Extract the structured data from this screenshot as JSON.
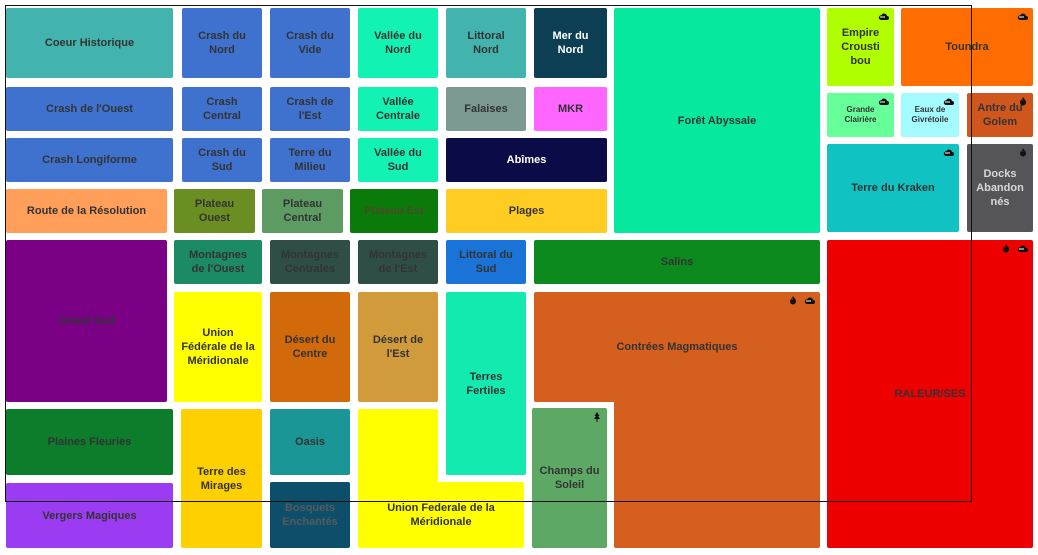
{
  "regions": [
    {
      "id": "coeur-historique",
      "label": "Coeur Historique",
      "color": "#43b3ae"
    },
    {
      "id": "crash-du-nord",
      "label": "Crash du\nNord",
      "color": "#3f72cf"
    },
    {
      "id": "crash-du-vide",
      "label": "Crash du\nVide",
      "color": "#3f72cf"
    },
    {
      "id": "vallee-du-nord",
      "label": "Vallée du\nNord",
      "color": "#12f2b2"
    },
    {
      "id": "littoral-nord",
      "label": "Littoral\nNord",
      "color": "#43b3ae"
    },
    {
      "id": "mer-du-nord",
      "label": "Mer du\nNord",
      "color": "#0c3f53"
    },
    {
      "id": "foret-abyssale",
      "label": "Forêt Abyssale",
      "color": "#06e89e"
    },
    {
      "id": "empire-croustibou",
      "label": "Empire\nCrousti\nbou",
      "color": "#b0ff00",
      "icons": [
        "cloud"
      ]
    },
    {
      "id": "toundra",
      "label": "Toundra",
      "color": "#ff6d00",
      "icons": [
        "cloud"
      ]
    },
    {
      "id": "crash-de-louest",
      "label": "Crash de l'Ouest",
      "color": "#3f72cf"
    },
    {
      "id": "crash-central",
      "label": "Crash\nCentral",
      "color": "#3f72cf"
    },
    {
      "id": "crash-de-lest",
      "label": "Crash de\nl'Est",
      "color": "#3f72cf"
    },
    {
      "id": "vallee-centrale",
      "label": "Vallée\nCentrale",
      "color": "#12f2b2"
    },
    {
      "id": "falaises",
      "label": "Falaises",
      "color": "#7c9a91"
    },
    {
      "id": "mkr",
      "label": "MKR",
      "color": "#ff66ff"
    },
    {
      "id": "grande-clairiere",
      "label": "Grande\nClairière",
      "color": "#66ff99",
      "icons": [
        "cloud"
      ]
    },
    {
      "id": "eaux-de-givretoile",
      "label": "Eaux de\nGivrétoile",
      "color": "#a4fbff",
      "icons": [
        "cloud"
      ]
    },
    {
      "id": "antre-du-golem",
      "label": "Antre du\nGolem",
      "color": "#cf561d",
      "icons": [
        "fire"
      ]
    },
    {
      "id": "crash-longiforme",
      "label": "Crash Longiforme",
      "color": "#3f72cf"
    },
    {
      "id": "crash-du-sud",
      "label": "Crash du\nSud",
      "color": "#3f72cf"
    },
    {
      "id": "terre-du-milieu",
      "label": "Terre du\nMilieu",
      "color": "#3f72cf"
    },
    {
      "id": "vallee-du-sud",
      "label": "Vallée du\nSud",
      "color": "#12f2b2"
    },
    {
      "id": "abimes",
      "label": "Abîmes",
      "color": "#0b0b47"
    },
    {
      "id": "terre-du-kraken",
      "label": "Terre du Kraken",
      "color": "#11c2c2",
      "icons": [
        "cloud"
      ]
    },
    {
      "id": "docks-abandonnes",
      "label": "Docks\nAbandon\nnés",
      "color": "#555559",
      "icons": [
        "fire"
      ]
    },
    {
      "id": "route-de-la-resolution",
      "label": "Route de la Résolution",
      "color": "#ff9f59"
    },
    {
      "id": "plateau-ouest",
      "label": "Plateau\nOuest",
      "color": "#6b8e23"
    },
    {
      "id": "plateau-central",
      "label": "Plateau\nCentral",
      "color": "#5c9b62"
    },
    {
      "id": "plateau-est",
      "label": "Plateau Est",
      "color": "#0a7b0a"
    },
    {
      "id": "plages",
      "label": "Plages",
      "color": "#ffcc22"
    },
    {
      "id": "grand-sud",
      "label": "Grand Sud",
      "color": "#7a0085"
    },
    {
      "id": "montagnes-de-louest",
      "label": "Montagnes\nde l'Ouest",
      "color": "#1c8a64"
    },
    {
      "id": "montagnes-centrales",
      "label": "Montagnes\nCentrales",
      "color": "#2f4f46"
    },
    {
      "id": "montagnes-de-lest",
      "label": "Montagnes\nde l'Est",
      "color": "#2f4f46"
    },
    {
      "id": "littoral-du-sud",
      "label": "Littoral du\nSud",
      "color": "#1a73d6"
    },
    {
      "id": "salins",
      "label": "Salins",
      "color": "#0c8a1e"
    },
    {
      "id": "raleurses",
      "label": "RALEUR/SES",
      "color": "#ee0000",
      "icons": [
        "fire",
        "cloud"
      ]
    },
    {
      "id": "union-federale-meridionale-nord",
      "label": "Union\nFédérale de la\nMéridionale",
      "color": "#ffff00"
    },
    {
      "id": "desert-du-centre",
      "label": "Désert du\nCentre",
      "color": "#d2690a"
    },
    {
      "id": "desert-de-lest",
      "label": "Désert de\nl'Est",
      "color": "#d19a3a"
    },
    {
      "id": "terres-fertiles",
      "label": "Terres\nFertiles",
      "color": "#12eab0"
    },
    {
      "id": "contrees-magmatiques",
      "label": "Contrées Magmatiques",
      "color": "#d45f1e",
      "icons": [
        "fire",
        "cloud"
      ]
    },
    {
      "id": "plaines-fleuries",
      "label": "Plaines Fleuries",
      "color": "#0b7d2b"
    },
    {
      "id": "terre-des-mirages",
      "label": "Terre des\nMirages",
      "color": "#ffd000"
    },
    {
      "id": "oasis",
      "label": "Oasis",
      "color": "#1a9696"
    },
    {
      "id": "champs-du-soleil",
      "label": "Champs du\nSoleil",
      "color": "#5ea865",
      "icons": [
        "tree"
      ]
    },
    {
      "id": "union-federale-meridionale-sud",
      "label": "Union Federale de la\nMéridionale",
      "color": "#ffff00"
    },
    {
      "id": "vergers-magiques",
      "label": "Vergers Magiques",
      "color": "#9b3cf2"
    },
    {
      "id": "bois-enchantes",
      "label": "Bosquets\nEnchantés",
      "color": "#0d4f6b"
    }
  ]
}
